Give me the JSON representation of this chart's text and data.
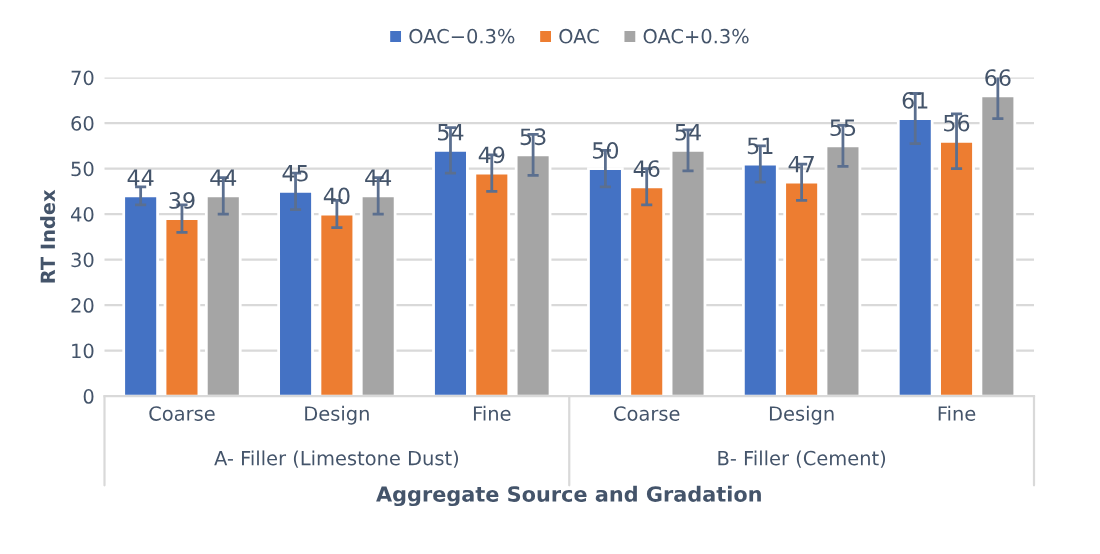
{
  "chart_data": {
    "type": "bar",
    "ylabel": "RT Index",
    "xlabel": "Aggregate Source and Gradation",
    "categories": [
      "Coarse",
      "Design",
      "Fine",
      "Coarse",
      "Design",
      "Fine"
    ],
    "annotations": [
      "A- Filler (Limestone Dust)",
      "B- Filler (Cement)"
    ],
    "series": [
      {
        "name": "OAC−0.3%",
        "color": "#4472c4",
        "values": [
          44,
          45,
          54,
          50,
          51,
          61
        ],
        "errors": [
          2,
          4,
          5,
          4,
          4,
          5.5
        ]
      },
      {
        "name": "OAC",
        "color": "#ed7d31",
        "values": [
          39,
          40,
          49,
          46,
          47,
          56
        ],
        "errors": [
          3,
          3,
          4,
          4,
          4,
          6
        ]
      },
      {
        "name": "OAC+0.3%",
        "color": "#a5a5a5",
        "values": [
          44,
          44,
          53,
          54,
          55,
          66
        ],
        "errors": [
          4,
          4,
          4.5,
          4.5,
          4.5,
          5
        ]
      }
    ],
    "ylim": [
      0,
      70
    ],
    "yticks": [
      0,
      10,
      20,
      30,
      40,
      50,
      60,
      70
    ],
    "grid": "y",
    "legend": "top",
    "data_labels": true
  }
}
